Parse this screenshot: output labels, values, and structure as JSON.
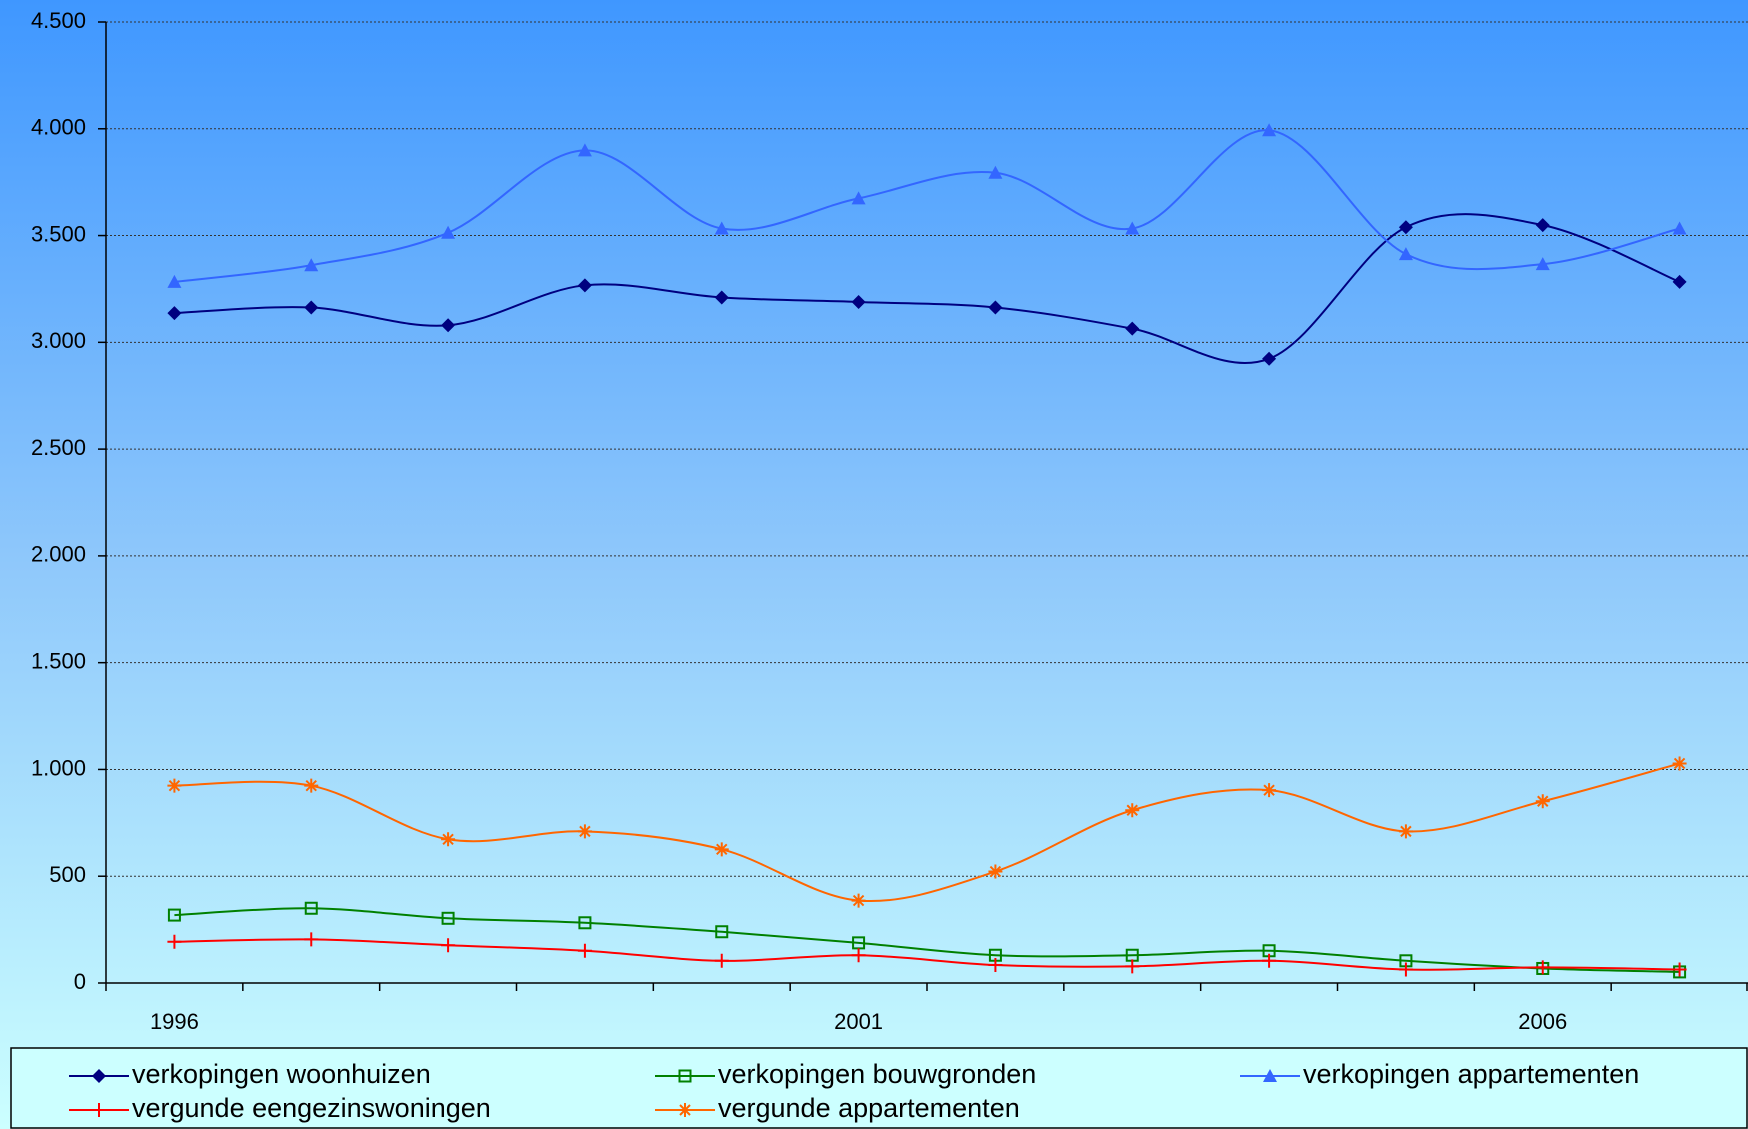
{
  "chart_data": {
    "type": "line",
    "categories": [
      "1996",
      null,
      null,
      null,
      null,
      "2001",
      null,
      null,
      null,
      null,
      "2006",
      null
    ],
    "series": [
      {
        "name": "verkopingen woonhuizen",
        "color": "#000080",
        "marker": "diamond",
        "values": [
          3137,
          3163,
          3080,
          3267,
          3210,
          3189,
          3163,
          3064,
          2923,
          3539,
          3549,
          3283
        ]
      },
      {
        "name": "verkopingen bouwgronden",
        "color": "#008000",
        "marker": "square",
        "values": [
          318,
          350,
          303,
          282,
          240,
          188,
          130,
          130,
          151,
          104,
          68,
          52
        ]
      },
      {
        "name": "verkopingen appartementen",
        "color": "#3366ff",
        "marker": "triangle",
        "values": [
          3283,
          3361,
          3513,
          3899,
          3533,
          3674,
          3794,
          3533,
          3993,
          3413,
          3366,
          3533
        ]
      },
      {
        "name": "vergunde eengezinswoningen",
        "color": "#ff0000",
        "marker": "plus",
        "values": [
          193,
          204,
          177,
          151,
          104,
          130,
          84,
          78,
          104,
          63,
          73,
          63
        ]
      },
      {
        "name": "vergunde appartementen",
        "color": "#ff6600",
        "marker": "asterisk",
        "values": [
          924,
          924,
          673,
          710,
          626,
          386,
          522,
          809,
          903,
          710,
          851,
          1028
        ]
      }
    ],
    "ylim": [
      0,
      4500
    ],
    "yticks": [
      0,
      500,
      {
        "value": 1000,
        "label": "1.000"
      },
      {
        "value": 1500,
        "label": "1.500"
      },
      {
        "value": 2000,
        "label": "2.000"
      },
      {
        "value": 2500,
        "label": "2.500"
      },
      {
        "value": 3000,
        "label": "3.000"
      },
      {
        "value": 3500,
        "label": "3.500"
      },
      {
        "value": 4000,
        "label": "4.000"
      },
      {
        "value": 4500,
        "label": "4.500"
      }
    ],
    "grid": true,
    "legend": "bottom"
  }
}
